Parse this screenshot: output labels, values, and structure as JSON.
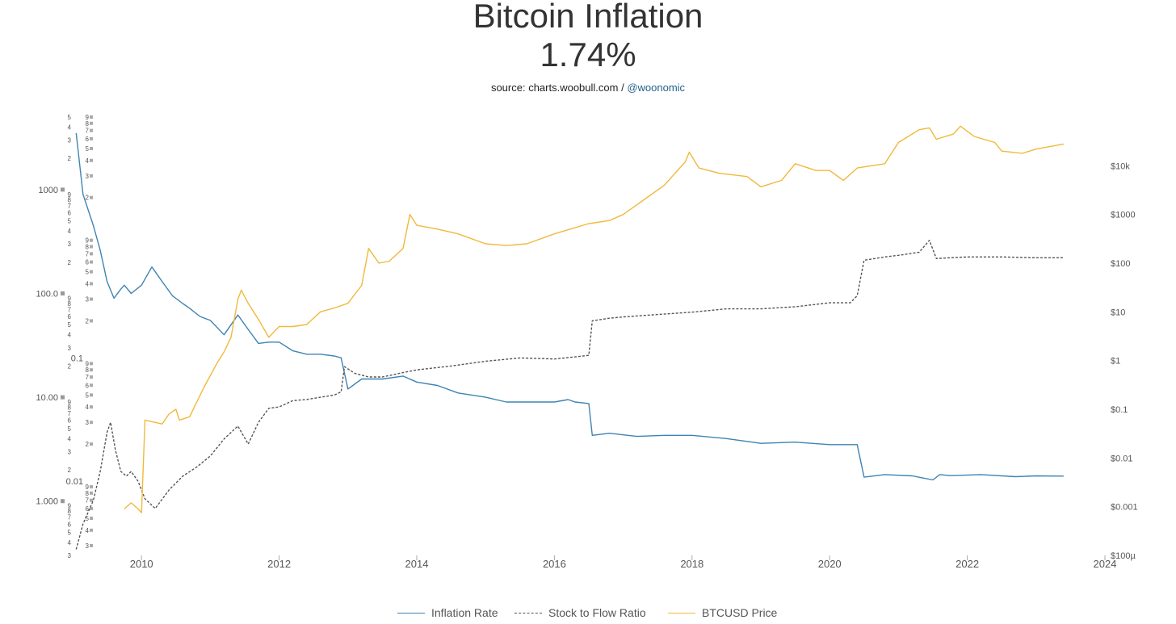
{
  "title": "Bitcoin Inflation",
  "subtitle": "1.74%",
  "source_prefix": "source: charts.woobull.com / ",
  "source_handle": "@woonomic",
  "chart_data": {
    "type": "line",
    "colors": {
      "inflation": "#3f83b2",
      "s2f": "#555555",
      "price": "#f0b93b"
    },
    "x_axis": {
      "range": [
        2009.0,
        2024.0
      ],
      "ticks": [
        "2010",
        "2012",
        "2014",
        "2016",
        "2018",
        "2020",
        "2022",
        "2024"
      ]
    },
    "y_axis_inflation": {
      "scale": "log",
      "range": [
        0.3,
        5000
      ],
      "ticks": [
        "1000",
        "100.0",
        "10.00",
        "1.000"
      ],
      "minor_labels": [
        "2",
        "3",
        "4",
        "5",
        "6",
        "7",
        "8",
        "9"
      ]
    },
    "y_axis_s2f": {
      "scale": "log",
      "range": [
        0.0025,
        9
      ],
      "ticks": [
        "0.1",
        "0.01"
      ],
      "minor_labels": [
        "2",
        "3",
        "4",
        "5",
        "6",
        "7",
        "8",
        "9"
      ]
    },
    "y_axis_price": {
      "scale": "log",
      "range": [
        0.0001,
        100000
      ],
      "ticks": [
        "$10k",
        "$1000",
        "$100",
        "$10",
        "$1",
        "$0.1",
        "$0.01",
        "$0.001",
        "$100µ"
      ]
    },
    "legend": {
      "position": "bottom-center",
      "items": [
        "Inflation Rate",
        "Stock to Flow Ratio",
        "BTCUSD Price"
      ]
    },
    "series": [
      {
        "name": "Inflation Rate",
        "axis": "inflation",
        "x": [
          2009.05,
          2009.15,
          2009.3,
          2009.4,
          2009.5,
          2009.6,
          2009.7,
          2009.75,
          2009.85,
          2010.0,
          2010.15,
          2010.3,
          2010.45,
          2010.6,
          2010.7,
          2010.85,
          2011.0,
          2011.2,
          2011.4,
          2011.55,
          2011.7,
          2011.85,
          2012.0,
          2012.2,
          2012.4,
          2012.6,
          2012.8,
          2012.9,
          2013.0,
          2013.2,
          2013.5,
          2013.8,
          2014.0,
          2014.3,
          2014.6,
          2015.0,
          2015.3,
          2015.6,
          2016.0,
          2016.2,
          2016.3,
          2016.5,
          2016.55,
          2016.8,
          2017.2,
          2017.6,
          2018.0,
          2018.5,
          2019.0,
          2019.5,
          2020.0,
          2020.3,
          2020.4,
          2020.5,
          2020.8,
          2021.2,
          2021.5,
          2021.6,
          2021.75,
          2022.2,
          2022.7,
          2023.0,
          2023.4
        ],
        "y": [
          3500,
          900,
          450,
          260,
          130,
          90,
          110,
          120,
          100,
          120,
          180,
          130,
          95,
          80,
          72,
          60,
          55,
          40,
          62,
          45,
          33,
          34,
          34,
          28,
          26,
          26,
          25,
          24,
          12,
          15,
          15,
          16,
          14,
          13,
          11,
          10,
          9,
          9,
          9,
          9.5,
          9,
          8.7,
          4.3,
          4.5,
          4.2,
          4.3,
          4.3,
          4.0,
          3.6,
          3.7,
          3.5,
          3.5,
          3.5,
          1.7,
          1.8,
          1.75,
          1.6,
          1.8,
          1.76,
          1.8,
          1.72,
          1.75,
          1.74
        ]
      },
      {
        "name": "Stock to Flow Ratio",
        "axis": "s2f",
        "x": [
          2009.05,
          2009.15,
          2009.3,
          2009.4,
          2009.5,
          2009.55,
          2009.62,
          2009.7,
          2009.78,
          2009.85,
          2009.95,
          2010.05,
          2010.2,
          2010.4,
          2010.6,
          2010.8,
          2011.0,
          2011.2,
          2011.4,
          2011.55,
          2011.7,
          2011.85,
          2012.0,
          2012.2,
          2012.4,
          2012.6,
          2012.8,
          2012.9,
          2012.95,
          2013.1,
          2013.3,
          2013.5,
          2013.8,
          2014.0,
          2014.5,
          2015.0,
          2015.5,
          2016.0,
          2016.3,
          2016.5,
          2016.55,
          2016.8,
          2017.0,
          2017.5,
          2018.0,
          2018.5,
          2019.0,
          2019.5,
          2020.0,
          2020.3,
          2020.4,
          2020.5,
          2020.8,
          2021.0,
          2021.3,
          2021.45,
          2021.55,
          2021.75,
          2022.0,
          2022.5,
          2023.0,
          2023.4
        ],
        "y": [
          0.0028,
          0.0045,
          0.007,
          0.012,
          0.025,
          0.03,
          0.018,
          0.012,
          0.011,
          0.012,
          0.01,
          0.0072,
          0.006,
          0.0085,
          0.011,
          0.013,
          0.016,
          0.022,
          0.028,
          0.02,
          0.03,
          0.039,
          0.04,
          0.045,
          0.046,
          0.048,
          0.05,
          0.053,
          0.085,
          0.075,
          0.07,
          0.07,
          0.076,
          0.08,
          0.086,
          0.094,
          0.1,
          0.098,
          0.102,
          0.105,
          0.2,
          0.21,
          0.215,
          0.225,
          0.235,
          0.25,
          0.25,
          0.26,
          0.28,
          0.28,
          0.32,
          0.62,
          0.66,
          0.68,
          0.72,
          0.9,
          0.64,
          0.65,
          0.66,
          0.66,
          0.65,
          0.65
        ]
      },
      {
        "name": "BTCUSD Price",
        "axis": "price",
        "x": [
          2009.75,
          2009.85,
          2009.95,
          2010.0,
          2010.05,
          2010.3,
          2010.4,
          2010.5,
          2010.55,
          2010.7,
          2010.9,
          2011.1,
          2011.2,
          2011.3,
          2011.4,
          2011.45,
          2011.55,
          2011.7,
          2011.85,
          2012.0,
          2012.2,
          2012.4,
          2012.6,
          2012.8,
          2013.0,
          2013.2,
          2013.3,
          2013.45,
          2013.6,
          2013.8,
          2013.9,
          2014.0,
          2014.3,
          2014.6,
          2015.0,
          2015.3,
          2015.6,
          2016.0,
          2016.5,
          2016.8,
          2017.0,
          2017.3,
          2017.6,
          2017.9,
          2017.96,
          2018.1,
          2018.4,
          2018.8,
          2019.0,
          2019.3,
          2019.5,
          2019.8,
          2020.0,
          2020.2,
          2020.4,
          2020.8,
          2021.0,
          2021.3,
          2021.45,
          2021.55,
          2021.8,
          2021.9,
          2022.1,
          2022.4,
          2022.5,
          2022.8,
          2023.0,
          2023.4
        ],
        "y": [
          0.0009,
          0.0012,
          0.0009,
          0.00075,
          0.06,
          0.05,
          0.08,
          0.1,
          0.06,
          0.07,
          0.27,
          0.9,
          1.5,
          3,
          18,
          28,
          15,
          7,
          3,
          5,
          5,
          5.5,
          10,
          12,
          15,
          35,
          200,
          100,
          110,
          200,
          1000,
          600,
          500,
          400,
          250,
          230,
          250,
          400,
          650,
          750,
          1000,
          2000,
          4000,
          12000,
          19000,
          9000,
          7000,
          6000,
          3700,
          5000,
          11000,
          8000,
          8000,
          5000,
          9000,
          11000,
          30000,
          55000,
          60000,
          35000,
          45000,
          65000,
          40000,
          30000,
          20000,
          18000,
          22000,
          28000
        ]
      }
    ]
  }
}
